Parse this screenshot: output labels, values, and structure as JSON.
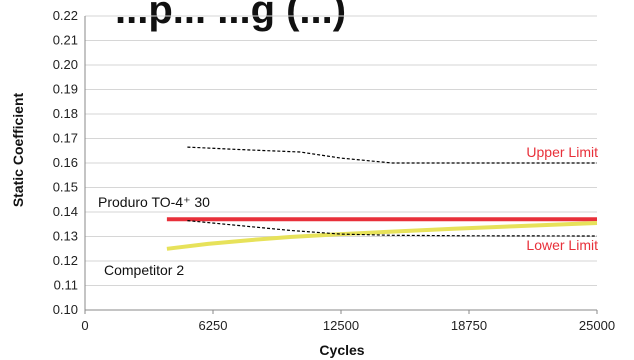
{
  "chart_data": {
    "type": "line",
    "title": "...p... ...g (...)",
    "xlabel": "Cycles",
    "ylabel": "Static Coefficient",
    "xlim": [
      0,
      25000
    ],
    "ylim": [
      0.1,
      0.22
    ],
    "x_ticks": [
      "0",
      "6250",
      "12500",
      "18750",
      "25000"
    ],
    "y_ticks": [
      "0.10",
      "0.11",
      "0.12",
      "0.13",
      "0.14",
      "0.15",
      "0.16",
      "0.17",
      "0.18",
      "0.19",
      "0.20",
      "0.21",
      "0.22"
    ],
    "grid": "horizontal",
    "series": [
      {
        "name": "Produro TO-4⁺ 30",
        "color": "#e8303a",
        "style": "solid",
        "points": [
          [
            4000,
            0.137
          ],
          [
            25000,
            0.137
          ]
        ]
      },
      {
        "name": "Competitor 2",
        "color": "#e7e25a",
        "style": "solid",
        "points": [
          [
            4000,
            0.125
          ],
          [
            6000,
            0.127
          ],
          [
            8000,
            0.1285
          ],
          [
            10000,
            0.1298
          ],
          [
            12500,
            0.131
          ],
          [
            15000,
            0.132
          ],
          [
            18000,
            0.1332
          ],
          [
            21000,
            0.1342
          ],
          [
            25000,
            0.1355
          ]
        ]
      },
      {
        "name": "Upper Limit",
        "color": "#000000",
        "style": "dashed",
        "points": [
          [
            5000,
            0.1665
          ],
          [
            7500,
            0.1655
          ],
          [
            10500,
            0.1645
          ],
          [
            12500,
            0.162
          ],
          [
            15000,
            0.16
          ],
          [
            25000,
            0.16
          ]
        ]
      },
      {
        "name": "Lower Limit",
        "color": "#000000",
        "style": "dashed",
        "points": [
          [
            5000,
            0.1365
          ],
          [
            7500,
            0.1345
          ],
          [
            10000,
            0.1325
          ],
          [
            12500,
            0.131
          ],
          [
            15000,
            0.1305
          ],
          [
            18750,
            0.1303
          ],
          [
            25000,
            0.1302
          ]
        ]
      }
    ],
    "annotations": {
      "upper": {
        "text": "Upper Limit",
        "color": "#e8303a"
      },
      "lower": {
        "text": "Lower Limit",
        "color": "#e8303a"
      },
      "produro": {
        "text": "Produro TO-4⁺ 30",
        "color": "#111111"
      },
      "competitor": {
        "text": "Competitor 2",
        "color": "#111111"
      }
    }
  }
}
